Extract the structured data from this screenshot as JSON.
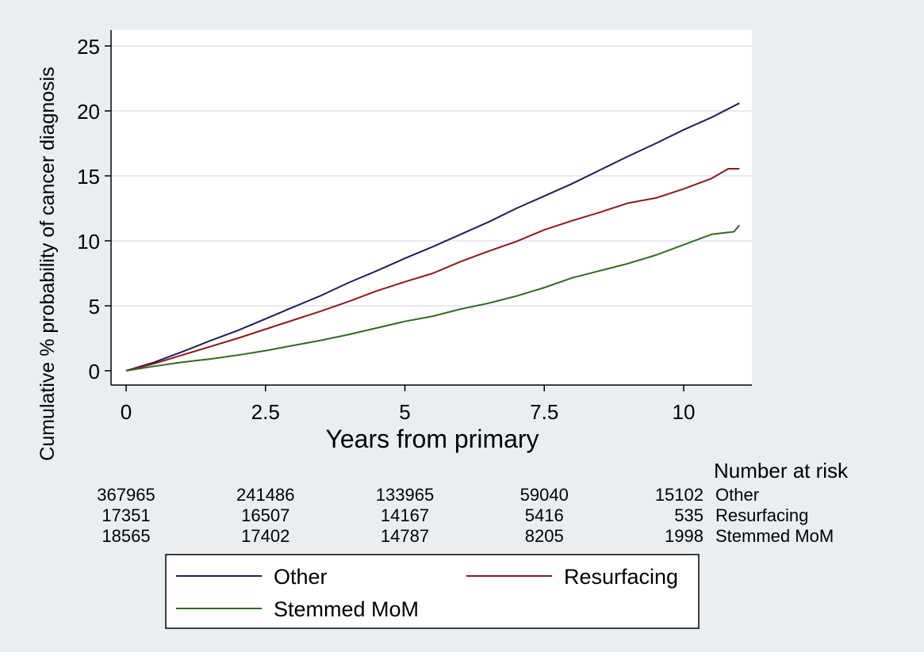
{
  "chart_data": {
    "type": "line",
    "title": "",
    "xlabel": "Years from primary",
    "ylabel": "Cumulative % probability of cancer diagnosis",
    "xlim": [
      0,
      11
    ],
    "ylim": [
      0,
      25
    ],
    "x_ticks": [
      0,
      2.5,
      5,
      7.5,
      10
    ],
    "x_tick_labels": [
      "0",
      "2.5",
      "5",
      "7.5",
      "10"
    ],
    "y_ticks": [
      0,
      5,
      10,
      15,
      20,
      25
    ],
    "y_tick_labels": [
      "0",
      "5",
      "10",
      "15",
      "20",
      "25"
    ],
    "grid": "horizontal",
    "series": [
      {
        "name": "Other",
        "color": "#1c1f5c",
        "x": [
          0,
          0.5,
          1,
          1.5,
          2,
          2.5,
          3,
          3.5,
          4,
          4.5,
          5,
          5.5,
          6,
          6.5,
          7,
          7.5,
          8,
          8.5,
          9,
          9.5,
          10,
          10.5,
          11
        ],
        "y": [
          0,
          0.65,
          1.45,
          2.3,
          3.1,
          4.0,
          4.9,
          5.8,
          6.8,
          7.7,
          8.65,
          9.55,
          10.5,
          11.45,
          12.5,
          13.45,
          14.4,
          15.45,
          16.5,
          17.5,
          18.55,
          19.5,
          20.6
        ]
      },
      {
        "name": "Resurfacing",
        "color": "#8b1a1a",
        "x": [
          0,
          0.5,
          1,
          1.5,
          2,
          2.5,
          3,
          3.5,
          4,
          4.5,
          5,
          5.5,
          6,
          6.5,
          7,
          7.5,
          8,
          8.5,
          9,
          9.5,
          10,
          10.5,
          10.8,
          11
        ],
        "y": [
          0,
          0.55,
          1.2,
          1.85,
          2.5,
          3.2,
          3.9,
          4.6,
          5.35,
          6.15,
          6.85,
          7.5,
          8.4,
          9.2,
          9.95,
          10.85,
          11.55,
          12.2,
          12.9,
          13.3,
          14.0,
          14.8,
          15.55,
          15.55
        ]
      },
      {
        "name": "Stemmed MoM",
        "color": "#2e6b1e",
        "x": [
          0,
          0.5,
          1,
          1.5,
          2,
          2.5,
          3,
          3.5,
          4,
          4.5,
          5,
          5.5,
          6,
          6.5,
          7,
          7.5,
          8,
          8.5,
          9,
          9.5,
          10,
          10.5,
          10.9,
          11
        ],
        "y": [
          0,
          0.35,
          0.65,
          0.9,
          1.2,
          1.55,
          1.95,
          2.35,
          2.8,
          3.3,
          3.8,
          4.2,
          4.75,
          5.2,
          5.75,
          6.4,
          7.15,
          7.7,
          8.25,
          8.9,
          9.7,
          10.5,
          10.7,
          11.2
        ]
      }
    ],
    "risk_table": {
      "header": "Number at risk",
      "x": [
        0,
        2.5,
        5,
        7.5,
        10
      ],
      "rows": [
        {
          "label": "Other",
          "values": [
            "367965",
            "241486",
            "133965",
            "59040",
            "15102"
          ]
        },
        {
          "label": "Resurfacing",
          "values": [
            "17351",
            "16507",
            "14167",
            "5416",
            "535"
          ]
        },
        {
          "label": "Stemmed MoM",
          "values": [
            "18565",
            "17402",
            "14787",
            "8205",
            "1998"
          ]
        }
      ]
    },
    "legend": {
      "position": "bottom",
      "entries": [
        "Other",
        "Resurfacing",
        "Stemmed MoM"
      ]
    },
    "colors": {
      "outer_background": "#e9eef3",
      "plot_background": "#ffffff",
      "grid": "#dde6ee"
    }
  }
}
